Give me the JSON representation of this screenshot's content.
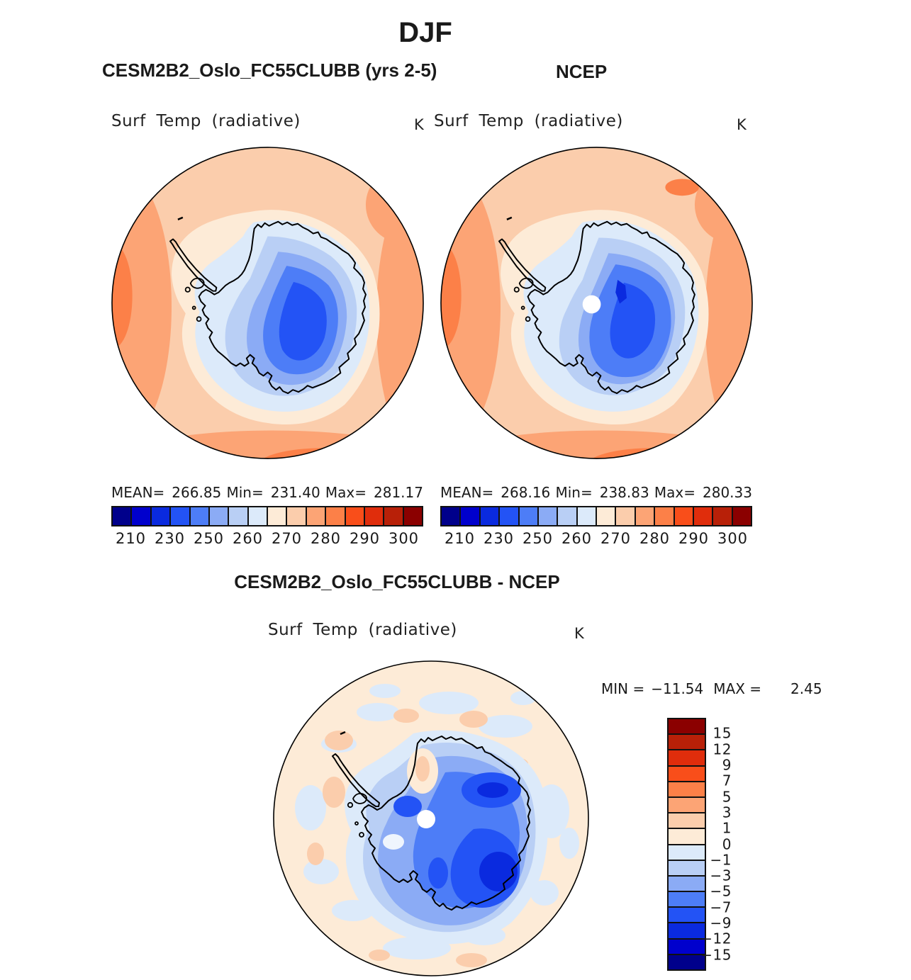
{
  "title": "DJF",
  "panels": {
    "left": {
      "subtitle": "CESM2B2_Oslo_FC55CLUBB (yrs 2-5)",
      "var_label": "Surf Temp (radiative)",
      "units": "K",
      "stats": {
        "mean_label": "MEAN=",
        "mean": "266.85",
        "min_label": "Min=",
        "min": "231.40",
        "max_label": "Max=",
        "max": "281.17"
      }
    },
    "right": {
      "subtitle": "NCEP",
      "var_label": "Surf Temp (radiative)",
      "units": "K",
      "stats": {
        "mean_label": "MEAN=",
        "mean": "268.16",
        "min_label": "Min=",
        "min": "238.83",
        "max_label": "Max=",
        "max": "280.33"
      }
    },
    "diff": {
      "subtitle": "CESM2B2_Oslo_FC55CLUBB - NCEP",
      "var_label": "Surf Temp (radiative)",
      "units": "K",
      "minmax": {
        "min_label": "MIN =",
        "min": "−11.54",
        "max_label": "MAX =",
        "max": "2.45"
      }
    }
  },
  "colorbar": {
    "palette": [
      "#00008B",
      "#0000CD",
      "#0A2ADF",
      "#2353F5",
      "#4D7DF7",
      "#8BABF5",
      "#B9CFF5",
      "#DCEAFA",
      "#FDEBD7",
      "#FBCDAC",
      "#FCA475",
      "#FC8048",
      "#F94E1A",
      "#E02D0C",
      "#B82008",
      "#8B0000"
    ],
    "tick_labels": [
      "210",
      "230",
      "250",
      "260",
      "270",
      "280",
      "290",
      "300"
    ]
  },
  "diff_colorbar": {
    "palette": [
      "#8B0000",
      "#B82008",
      "#E02D0C",
      "#F94E1A",
      "#FC8048",
      "#FCA475",
      "#FBCDAC",
      "#FDEBD7",
      "#DCEAFA",
      "#B9CFF5",
      "#8BABF5",
      "#4D7DF7",
      "#2353F5",
      "#0A2ADF",
      "#0000CD",
      "#00008B"
    ],
    "tick_labels": [
      "15",
      "12",
      "9",
      "7",
      "5",
      "3",
      "1",
      "0",
      "−1",
      "−3",
      "−5",
      "−7",
      "−9",
      "−12",
      "−15"
    ]
  },
  "chart_data": [
    {
      "type": "heatmap",
      "subtype": "filled-contour polar stereographic map (Antarctica)",
      "panel": "top-left",
      "season": "DJF",
      "title": "CESM2B2_Oslo_FC55CLUBB (yrs 2-5)",
      "variable": "Surf Temp (radiative)",
      "units": "K",
      "stats": {
        "mean": 266.85,
        "min": 231.4,
        "max": 281.17
      },
      "colorbar_ticks": [
        210,
        230,
        250,
        260,
        270,
        280,
        290,
        300
      ],
      "n_color_bins": 16,
      "palette_low_to_high": [
        "#00008B",
        "#0000CD",
        "#0A2ADF",
        "#2353F5",
        "#4D7DF7",
        "#8BABF5",
        "#B9CFF5",
        "#DCEAFA",
        "#FDEBD7",
        "#FBCDAC",
        "#FCA475",
        "#FC8048",
        "#F94E1A",
        "#E02D0C",
        "#B82008",
        "#8B0000"
      ],
      "description": "Cold (blue) Antarctic continent surrounded by warm (salmon/orange) Southern Ocean"
    },
    {
      "type": "heatmap",
      "subtype": "filled-contour polar stereographic map (Antarctica)",
      "panel": "top-right",
      "season": "DJF",
      "title": "NCEP",
      "variable": "Surf Temp (radiative)",
      "units": "K",
      "stats": {
        "mean": 268.16,
        "min": 238.83,
        "max": 280.33
      },
      "colorbar_ticks": [
        210,
        230,
        250,
        260,
        270,
        280,
        290,
        300
      ],
      "n_color_bins": 16,
      "notes": "white data-void circle at pole"
    },
    {
      "type": "heatmap",
      "subtype": "filled-contour polar stereographic difference map",
      "panel": "bottom",
      "season": "DJF",
      "title": "CESM2B2_Oslo_FC55CLUBB - NCEP",
      "variable": "Surf Temp (radiative)",
      "units": "K",
      "stats": {
        "min": -11.54,
        "max": 2.45
      },
      "colorbar_ticks": [
        15,
        12,
        9,
        7,
        5,
        3,
        1,
        0,
        -1,
        -3,
        -5,
        -7,
        -9,
        -12,
        -15
      ],
      "n_color_bins": 16,
      "notes": "strong negative (blue) differences over the continent; near-zero mottled ocean; white data-void circle at pole"
    }
  ]
}
